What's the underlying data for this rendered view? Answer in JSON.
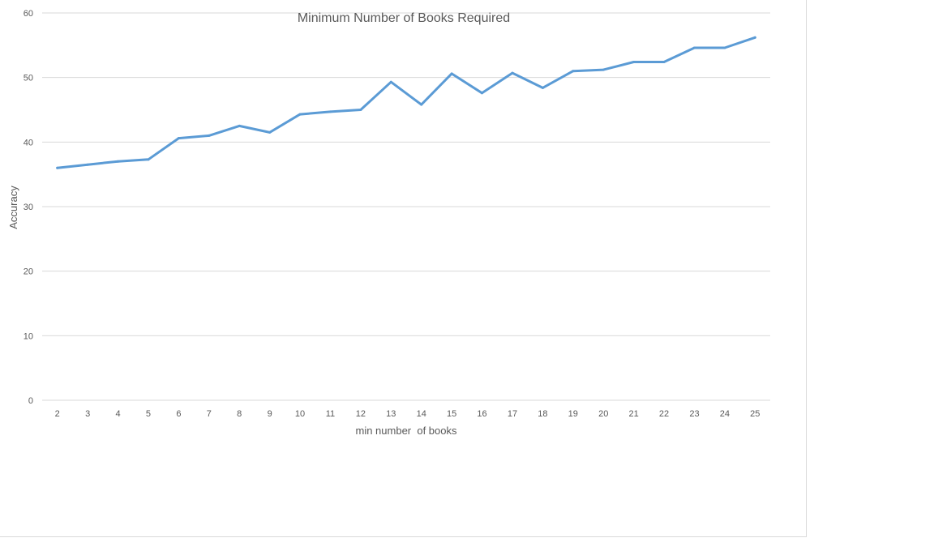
{
  "chart_data": {
    "type": "line",
    "title": "Minimum Number of Books Required",
    "xlabel": "min number  of books",
    "ylabel": "Accuracy",
    "categories": [
      "2",
      "3",
      "4",
      "5",
      "6",
      "7",
      "8",
      "9",
      "10",
      "11",
      "12",
      "13",
      "14",
      "15",
      "16",
      "17",
      "18",
      "19",
      "20",
      "21",
      "22",
      "23",
      "24",
      "25"
    ],
    "series": [
      {
        "values": [
          36.0,
          36.5,
          37.0,
          37.3,
          40.6,
          41.0,
          42.5,
          41.5,
          44.3,
          44.7,
          45.0,
          49.3,
          45.8,
          50.6,
          47.6,
          50.7,
          48.4,
          51.0,
          51.2,
          52.4,
          52.4,
          54.6,
          54.6,
          56.2
        ],
        "color": "#5b9bd5"
      }
    ],
    "ylim": [
      0,
      60
    ],
    "yticks": [
      0,
      10,
      20,
      30,
      40,
      50,
      60
    ],
    "grid": true,
    "legend": "none",
    "colors": {
      "gridline": "#d9d9d9",
      "text": "#595959"
    }
  }
}
